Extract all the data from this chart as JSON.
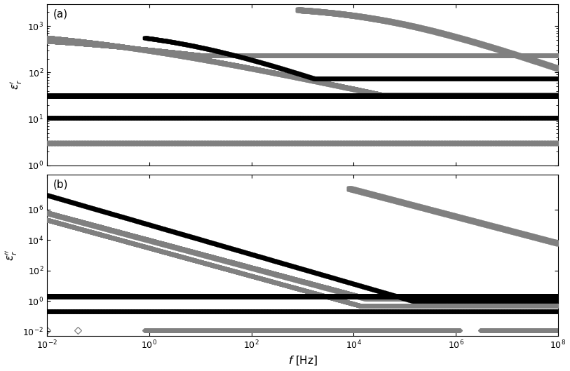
{
  "freq_min": 0.01,
  "freq_max": 100000000.0,
  "panel_a_ylim": [
    1.0,
    3000
  ],
  "panel_a_yticks": [
    1,
    10,
    100,
    1000
  ],
  "panel_b_ylim": [
    0.005,
    200000000.0
  ],
  "panel_b_yticks": [
    0.01,
    1,
    100,
    10000,
    1000000
  ],
  "ylabel_a": "$\\varepsilon_r^{\\prime}$",
  "ylabel_b": "$\\varepsilon_r^{\\prime\\prime}$",
  "xlabel": "$f$ [Hz]",
  "label_a": "(a)",
  "label_b": "(b)",
  "gray": "#808080",
  "black": "#000000"
}
